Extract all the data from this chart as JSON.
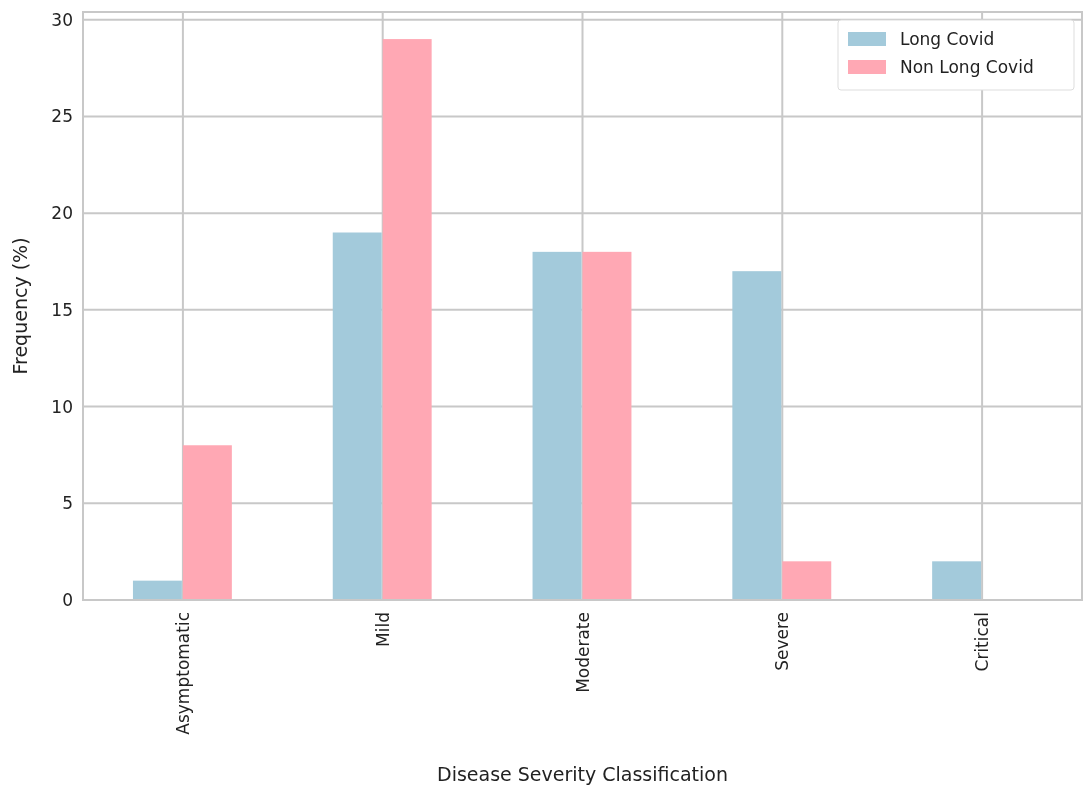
{
  "chart_data": {
    "type": "bar",
    "xlabel": "Disease Severity Classification",
    "ylabel": "Frequency (%)",
    "categories": [
      "Asymptomatic",
      "Mild",
      "Moderate",
      "Severe",
      "Critical"
    ],
    "series": [
      {
        "name": "Long Covid",
        "color": "#a3cadb",
        "values": [
          1,
          19,
          18,
          17,
          2
        ]
      },
      {
        "name": "Non Long Covid",
        "color": "#ffa8b4",
        "values": [
          8,
          29,
          18,
          2,
          0
        ]
      }
    ],
    "ylim": [
      0,
      30.4
    ],
    "yticks": [
      0,
      5,
      10,
      15,
      20,
      25,
      30
    ],
    "grid": true,
    "legend": "top right"
  }
}
